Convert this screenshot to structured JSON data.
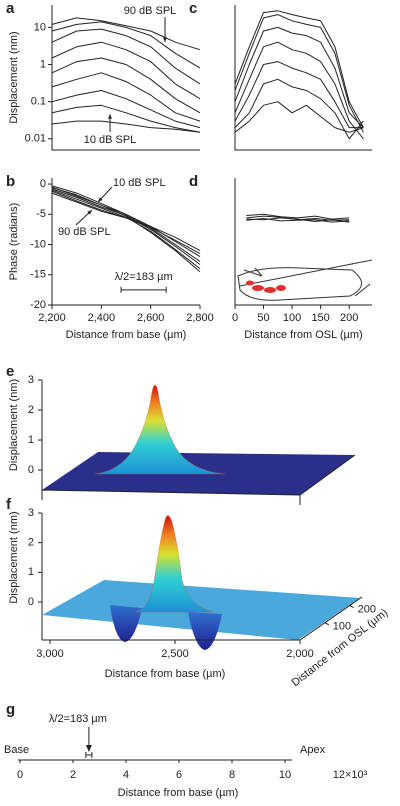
{
  "chart_data": [
    {
      "type": "line",
      "panel": "a",
      "ylabel": "Displacement (nm)",
      "log_y": true,
      "x": [
        2200,
        2300,
        2400,
        2500,
        2600,
        2700,
        2800
      ],
      "xlim": [
        2200,
        2800
      ],
      "ylim": [
        0.005,
        40
      ],
      "yticks": [
        0.01,
        0.1,
        1,
        10
      ],
      "annotations": [
        "90 dB SPL",
        "10 dB SPL"
      ],
      "series": [
        {
          "color": "#222",
          "values": [
            12,
            18,
            15,
            11,
            8,
            4,
            2.5
          ]
        },
        {
          "color": "#222",
          "values": [
            8,
            12,
            14,
            10,
            6,
            2,
            0.8
          ]
        },
        {
          "color": "#222",
          "values": [
            4,
            8,
            9,
            6,
            3,
            0.8,
            0.3
          ]
        },
        {
          "color": "#222",
          "values": [
            1.5,
            3,
            4,
            2.5,
            1.2,
            0.3,
            0.12
          ]
        },
        {
          "color": "#222",
          "values": [
            0.6,
            1.2,
            1.5,
            1,
            0.4,
            0.12,
            0.05
          ]
        },
        {
          "color": "#222",
          "values": [
            0.25,
            0.4,
            0.6,
            0.35,
            0.15,
            0.05,
            0.03
          ]
        },
        {
          "color": "#222",
          "values": [
            0.1,
            0.15,
            0.2,
            0.12,
            0.06,
            0.03,
            0.02
          ]
        },
        {
          "color": "#222",
          "values": [
            0.05,
            0.07,
            0.08,
            0.05,
            0.03,
            0.02,
            0.015
          ]
        },
        {
          "color": "#222",
          "values": [
            0.025,
            0.03,
            0.03,
            0.025,
            0.02,
            0.018,
            0.015
          ]
        }
      ]
    },
    {
      "type": "line",
      "panel": "b",
      "ylabel": "Phase (radians)",
      "xlabel": "Distance from base (µm)",
      "x": [
        2200,
        2300,
        2400,
        2500,
        2600,
        2700,
        2800
      ],
      "xlim": [
        2200,
        2800
      ],
      "ylim": [
        -20,
        1
      ],
      "yticks": [
        0,
        -5,
        -10,
        -15,
        -20
      ],
      "xticks": [
        {
          "value": 2200,
          "label": "2,200"
        },
        {
          "value": 2400,
          "label": "2,400"
        },
        {
          "value": 2600,
          "label": "2,600"
        },
        {
          "value": 2800,
          "label": "2,800"
        }
      ],
      "annotations": [
        "10 dB SPL",
        "90 dB SPL"
      ],
      "scalebar": {
        "label": "λ/2=183 µm",
        "x": [
          2480,
          2663
        ],
        "y": -17.5
      },
      "series": [
        {
          "color": "#222",
          "values": [
            -0.5,
            -2,
            -3.5,
            -5,
            -7,
            -9.5,
            -12
          ]
        },
        {
          "color": "#222",
          "values": [
            -0.3,
            -1.5,
            -3.2,
            -5,
            -7.3,
            -10,
            -12.8
          ]
        },
        {
          "color": "#222",
          "values": [
            -0.8,
            -2.2,
            -3.8,
            -5.2,
            -7.5,
            -10.3,
            -13.3
          ]
        },
        {
          "color": "#222",
          "values": [
            -1,
            -2.5,
            -4,
            -5.5,
            -7.8,
            -10.8,
            -14
          ]
        },
        {
          "color": "#222",
          "values": [
            -0.6,
            -1.8,
            -3.5,
            -5.3,
            -8,
            -11,
            -14.5
          ]
        },
        {
          "color": "#222",
          "values": [
            -1.2,
            -2.8,
            -4.3,
            -5.6,
            -7.2,
            -9.3,
            -11.5
          ]
        },
        {
          "color": "#222",
          "values": [
            -1.5,
            -3,
            -4.5,
            -5.6,
            -7,
            -8.8,
            -11
          ]
        }
      ]
    },
    {
      "type": "line",
      "panel": "c",
      "log_y": true,
      "x": [
        0,
        25,
        50,
        75,
        100,
        125,
        150,
        175,
        200,
        225
      ],
      "xlim": [
        0,
        240
      ],
      "ylim": [
        0.005,
        40
      ],
      "series": [
        {
          "color": "#222",
          "values": [
            0.3,
            3,
            25,
            28,
            22,
            18,
            15,
            3,
            0.1,
            0.02
          ]
        },
        {
          "color": "#222",
          "values": [
            0.2,
            2,
            18,
            22,
            15,
            12,
            10,
            2,
            0.08,
            0.015
          ]
        },
        {
          "color": "#222",
          "values": [
            0.1,
            1,
            8,
            10,
            7,
            6,
            4,
            0.8,
            0.05,
            0.02
          ]
        },
        {
          "color": "#222",
          "values": [
            0.05,
            0.4,
            3,
            4,
            2.5,
            2,
            1.2,
            0.3,
            0.03,
            0.01
          ]
        },
        {
          "color": "#222",
          "values": [
            0.03,
            0.15,
            1,
            1.2,
            0.8,
            0.6,
            0.4,
            0.1,
            0.02,
            0.02
          ]
        },
        {
          "color": "#222",
          "values": [
            0.02,
            0.05,
            0.3,
            0.4,
            0.25,
            0.2,
            0.12,
            0.05,
            0.01,
            0.03
          ]
        },
        {
          "color": "#222",
          "values": [
            0.015,
            0.03,
            0.08,
            0.1,
            0.05,
            0.08,
            0.04,
            0.02,
            0.015,
            0.02
          ]
        }
      ]
    },
    {
      "type": "line",
      "panel": "d",
      "xlabel": "Distance from OSL (µm)",
      "x": [
        20,
        50,
        80,
        110,
        140,
        170,
        200
      ],
      "xlim": [
        0,
        240
      ],
      "ylim": [
        -20,
        1
      ],
      "xticks": [
        0,
        50,
        100,
        150,
        200
      ],
      "series": [
        {
          "color": "#222",
          "values": [
            -5.2,
            -5.0,
            -5.4,
            -5.6,
            -5.3,
            -5.8,
            -5.6
          ]
        },
        {
          "color": "#222",
          "values": [
            -5.6,
            -5.3,
            -5.5,
            -5.9,
            -5.7,
            -6.0,
            -5.9
          ]
        },
        {
          "color": "#222",
          "values": [
            -5.8,
            -5.9,
            -5.6,
            -5.8,
            -6.2,
            -5.9,
            -6.3
          ]
        },
        {
          "color": "#222",
          "values": [
            -6.0,
            -5.7,
            -6.1,
            -6.0,
            -5.9,
            -6.3,
            -6.1
          ]
        }
      ]
    },
    {
      "type": "surface",
      "panel": "e",
      "ylabel": "Displacement (nm)",
      "zlim": [
        0,
        3
      ],
      "zticks": [
        0,
        1,
        2,
        3
      ]
    },
    {
      "type": "surface",
      "panel": "f",
      "ylabel": "Displacement (nm)",
      "zlim": [
        0,
        3
      ],
      "zticks": [
        0,
        1,
        2,
        3
      ],
      "xlabel": "Distance from base (µm)",
      "xlim": [
        3000,
        2000
      ],
      "xticks": [
        {
          "value": 3000,
          "label": "3,000"
        },
        {
          "value": 2500,
          "label": "2,500"
        },
        {
          "value": 2000,
          "label": "2,000"
        }
      ],
      "olabel": "Distance from OSL (µm)",
      "olim": [
        0,
        250
      ],
      "oticks": [
        100,
        200
      ]
    },
    {
      "type": "axis",
      "panel": "g",
      "xlabel": "Distance from base (µm)",
      "xlim": [
        0,
        12
      ],
      "xticks": [
        0,
        2,
        4,
        6,
        8,
        10,
        {
          "value": 12,
          "label": "12×10³"
        }
      ],
      "left_label": "Base",
      "right_label": "Apex",
      "marker": {
        "label": "λ/2=183 µm",
        "x": 2.6
      }
    }
  ]
}
